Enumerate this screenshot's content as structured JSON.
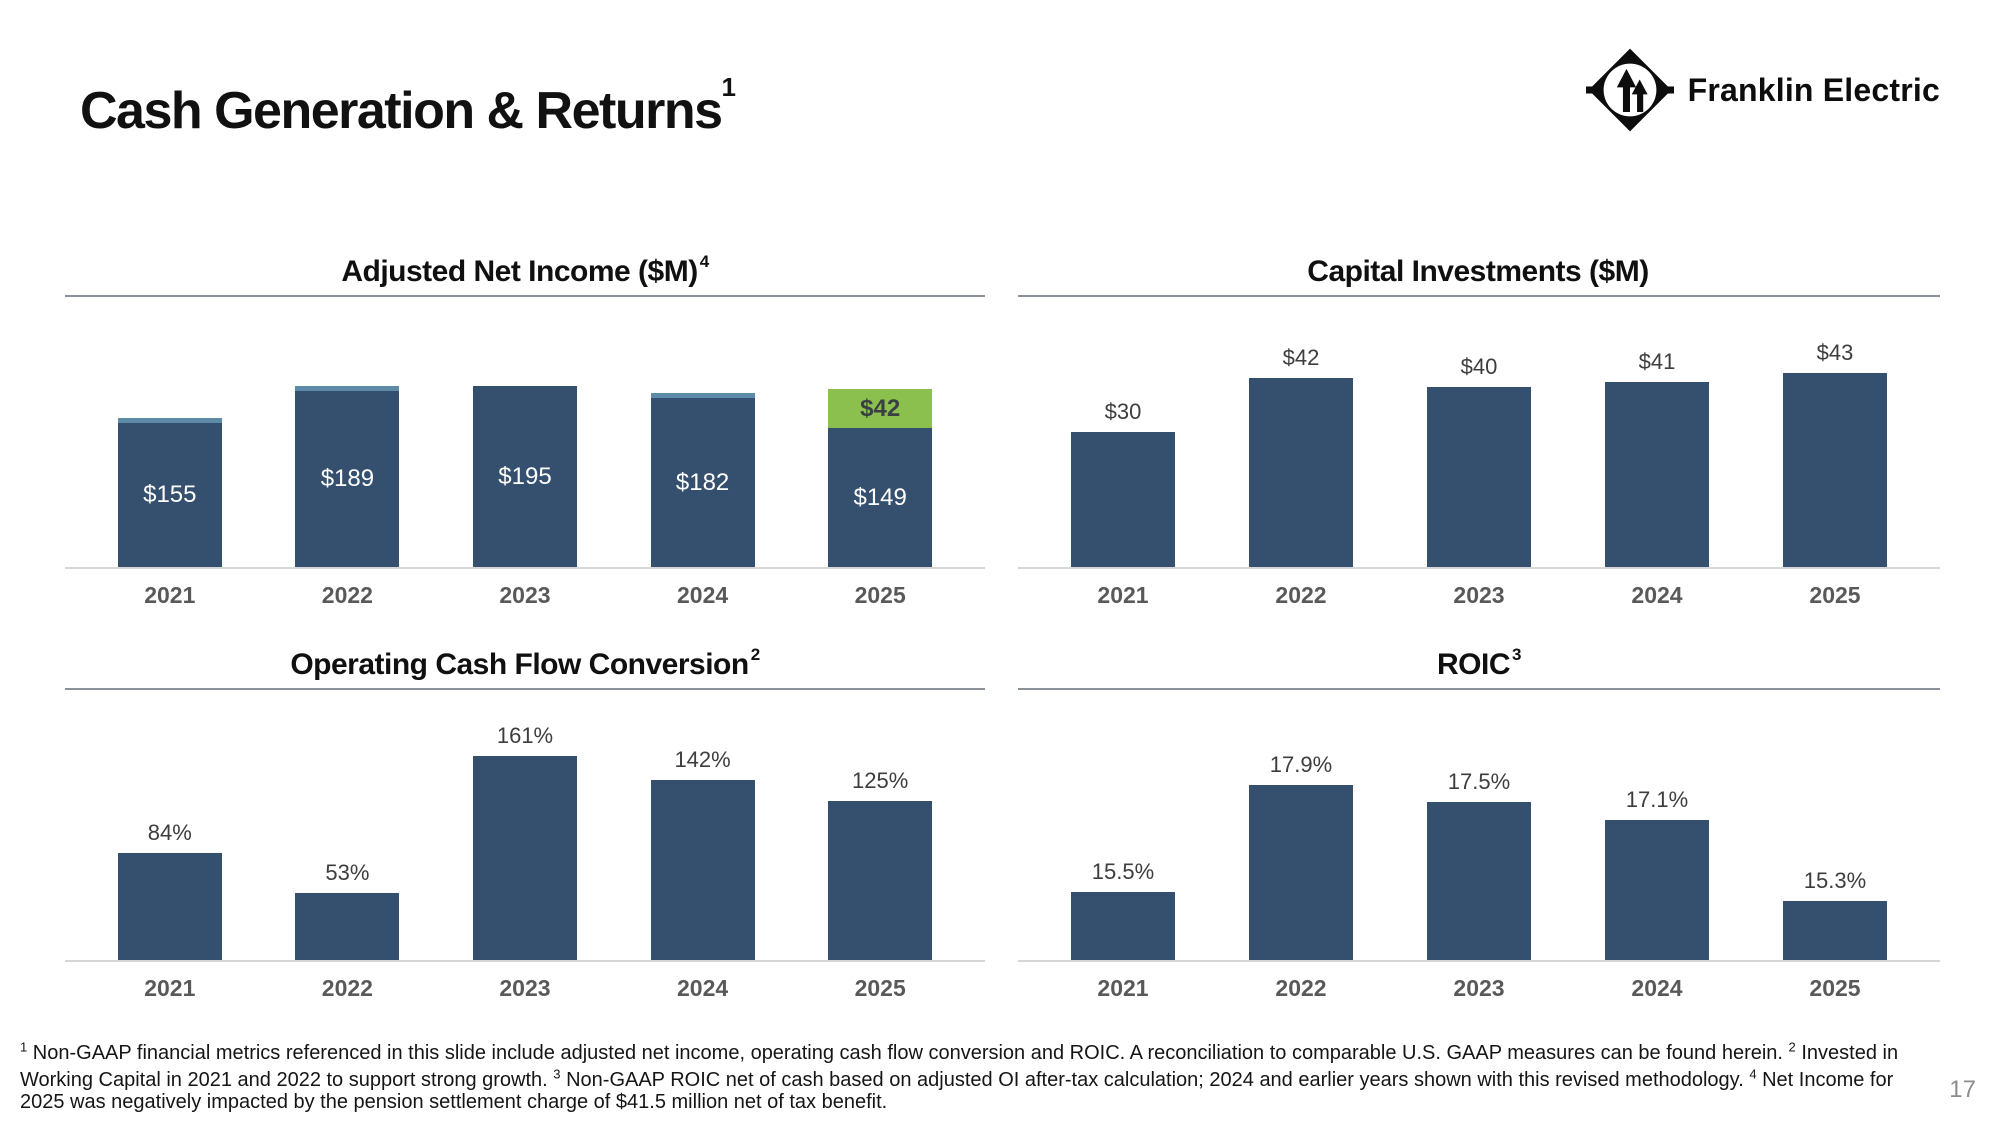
{
  "header": {
    "title": "Cash Generation & Returns",
    "title_sup": "1"
  },
  "brand": {
    "name": "Franklin Electric"
  },
  "chart_data": [
    {
      "key": "ani",
      "type": "bar",
      "title": "Adjusted Net Income ($M)",
      "title_sup": "4",
      "categories": [
        "2021",
        "2022",
        "2023",
        "2024",
        "2025"
      ],
      "series": [
        {
          "color_key": "bar_navy",
          "values": [
            155,
            189,
            195,
            182,
            149
          ],
          "labels": [
            "$155",
            "$189",
            "$195",
            "$182",
            "$149"
          ]
        },
        {
          "color_key": "bar_green",
          "values": [
            0,
            0,
            0,
            0,
            42
          ],
          "labels": [
            null,
            null,
            null,
            null,
            "$42"
          ]
        }
      ],
      "thin_cap_flags": [
        true,
        true,
        false,
        true,
        false
      ],
      "label_position": "inside",
      "xlabel": "",
      "ylabel": "",
      "ylim": [
        0,
        250
      ],
      "grid": false,
      "legend": null
    },
    {
      "key": "capex",
      "type": "bar",
      "title": "Capital Investments ($M)",
      "title_sup": "",
      "categories": [
        "2021",
        "2022",
        "2023",
        "2024",
        "2025"
      ],
      "values": [
        30,
        42,
        40,
        41,
        43
      ],
      "labels": [
        "$30",
        "$42",
        "$40",
        "$41",
        "$43"
      ],
      "label_position": "above",
      "xlabel": "",
      "ylabel": "",
      "ylim": [
        0,
        50
      ],
      "grid": false,
      "legend": null
    },
    {
      "key": "ocf",
      "type": "bar",
      "title": "Operating Cash Flow Conversion",
      "title_sup": "2",
      "categories": [
        "2021",
        "2022",
        "2023",
        "2024",
        "2025"
      ],
      "values": [
        84,
        53,
        161,
        142,
        125
      ],
      "labels": [
        "84%",
        "53%",
        "161%",
        "142%",
        "125%"
      ],
      "label_position": "above",
      "xlabel": "",
      "ylabel": "",
      "ylim": [
        0,
        180
      ],
      "grid": false,
      "legend": null
    },
    {
      "key": "roic",
      "type": "bar",
      "title": "ROIC",
      "title_sup": "3",
      "categories": [
        "2021",
        "2022",
        "2023",
        "2024",
        "2025"
      ],
      "values": [
        15.5,
        17.9,
        17.5,
        17.1,
        15.3
      ],
      "labels": [
        "15.5%",
        "17.9%",
        "17.5%",
        "17.1%",
        "15.3%"
      ],
      "label_position": "above",
      "baseline_note": "bars drawn from a truncated baseline near 14%",
      "xlabel": "",
      "ylabel": "",
      "ylim": [
        14,
        19
      ],
      "grid": false,
      "legend": null
    }
  ],
  "footnotes": {
    "segments": [
      {
        "sup": "1",
        "text": "Non-GAAP financial metrics referenced in this slide include adjusted net income, operating cash flow conversion and ROIC. A reconciliation to comparable U.S. GAAP measures can be found herein."
      },
      {
        "sup": "2",
        "text": "Invested in Working Capital in 2021 and 2022 to support strong growth."
      },
      {
        "sup": "3",
        "text": "Non-GAAP ROIC net of cash based on adjusted OI after-tax calculation; 2024 and earlier years shown with this revised methodology."
      },
      {
        "sup": "4",
        "text": "Net Income for 2025 was negatively impacted by the pension settlement charge of $41.5 million net of tax benefit."
      }
    ]
  },
  "page": {
    "number": "17"
  },
  "colors": {
    "bar_navy": "#35506F",
    "bar_green": "#8CC04E",
    "bar_cap": "#5E8CA8",
    "axis_line": "#D6D6D6",
    "title_rule": "#8A9199",
    "year_label": "#595959",
    "value_label": "#3D3D3D",
    "page_number": "#8C8C8C",
    "logo_black": "#0d0d0d",
    "background": "#FFFFFF"
  }
}
